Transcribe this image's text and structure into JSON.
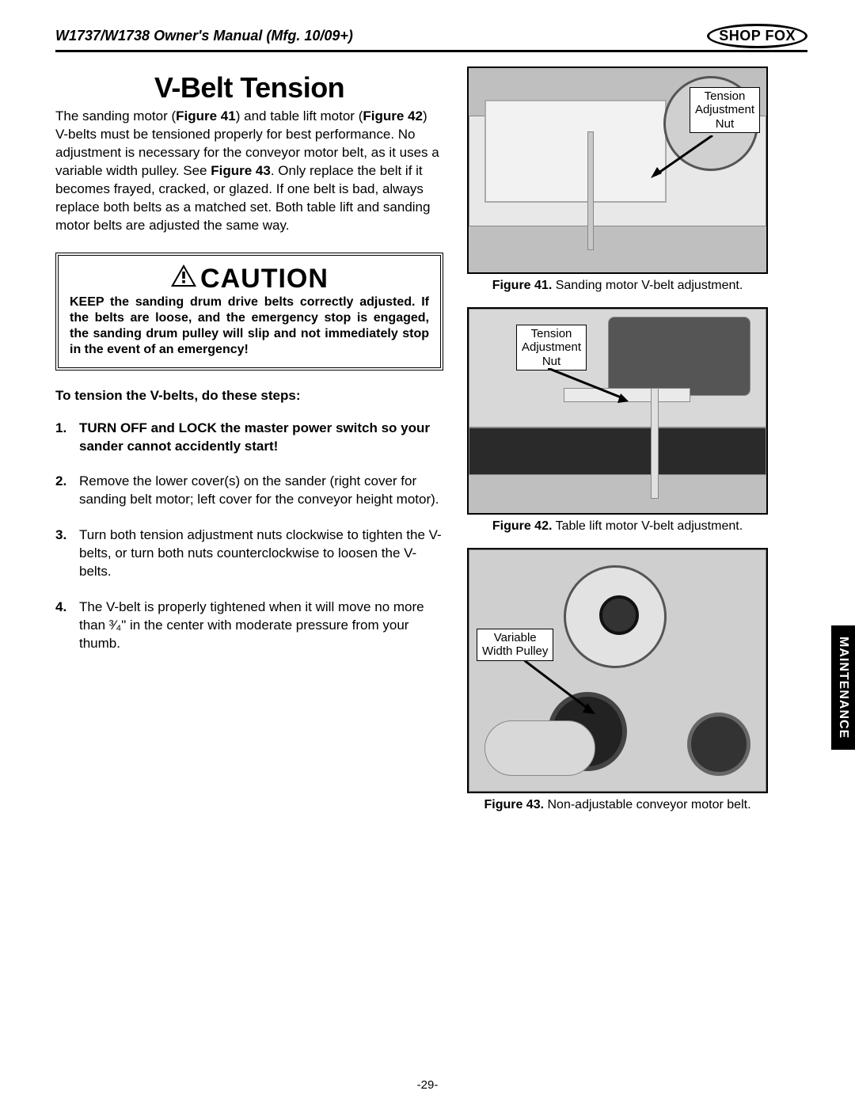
{
  "header": {
    "title": "W1737/W1738 Owner's Manual (Mfg. 10/09+)",
    "brand": "SHOP FOX"
  },
  "page_title": "V-Belt Tension",
  "intro_html": "The sanding motor (<b>Figure 41</b>) and table lift motor (<b>Figure 42</b>) V-belts must be tensioned properly for best performance. No adjustment is necessary for the conveyor motor belt, as it uses a variable width pulley. See <b>Figure 43</b>. Only replace the belt if it becomes frayed, cracked, or glazed. If one belt is bad, always replace both belts as a matched set. Both table lift and sanding motor belts are adjusted the same way.",
  "caution": {
    "heading": "CAUTION",
    "body": "KEEP the sanding drum drive belts correctly adjusted. If the belts are loose, and the emergency stop is engaged, the sanding drum pulley will slip and not immediately stop in the event of an emergency!"
  },
  "steps_intro": "To tension the V-belts, do these steps:",
  "steps": [
    {
      "text": "TURN OFF and LOCK the master power switch so your sander cannot accidently start!",
      "bold": true
    },
    {
      "text": "Remove the lower cover(s) on the sander (right cover for sanding belt motor; left cover for the conveyor height motor).",
      "bold": false
    },
    {
      "text": "Turn both tension adjustment nuts clockwise to tighten the V-belts, or turn both nuts counterclockwise to loosen the V-belts.",
      "bold": false
    },
    {
      "text": "The V-belt is properly tightened when it will move no more than ³⁄₄\" in the center with moderate pressure from your thumb.",
      "bold": false
    }
  ],
  "figures": {
    "f41": {
      "callout": "Tension\nAdjustment\nNut",
      "caption_bold": "Figure 41.",
      "caption_rest": " Sanding motor V-belt adjustment."
    },
    "f42": {
      "callout": "Tension\nAdjustment\nNut",
      "caption_bold": "Figure 42.",
      "caption_rest": " Table lift motor V-belt adjustment."
    },
    "f43": {
      "callout": "Variable\nWidth Pulley",
      "caption_bold": "Figure 43.",
      "caption_rest": " Non-adjustable conveyor motor belt."
    }
  },
  "side_tab": "MAINTENANCE",
  "page_number": "-29-",
  "colors": {
    "text": "#000000",
    "bg": "#ffffff",
    "fig_bg": "#bfbfbf",
    "tab_bg": "#000000",
    "tab_fg": "#ffffff"
  }
}
